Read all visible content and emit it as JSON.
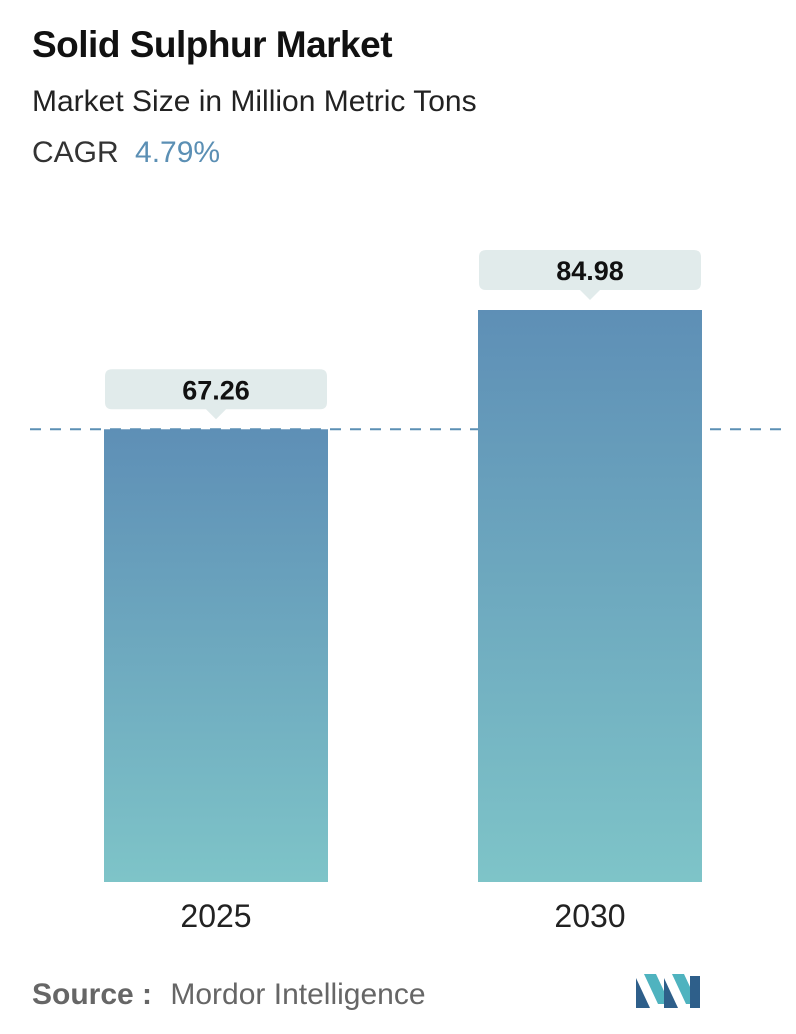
{
  "header": {
    "title": "Solid Sulphur Market",
    "subtitle": "Market Size in Million Metric Tons",
    "cagr_label": "CAGR",
    "cagr_value": "4.79%"
  },
  "footer": {
    "source_label": "Source :",
    "source_name": "Mordor Intelligence",
    "logo_icon": "mordor-intelligence-logo-icon"
  },
  "colors": {
    "bar_top": "#5e8fb6",
    "bar_bottom": "#7ec4c8",
    "label_box": "#e1ebeb",
    "reference_line": "#5b8fb4",
    "cagr_accent": "#5b8fb4",
    "logo_dark": "#2e5f8a",
    "logo_light": "#4fb3bf"
  },
  "chart_data": {
    "type": "bar",
    "categories": [
      "2025",
      "2030"
    ],
    "values": [
      67.26,
      84.98
    ],
    "value_labels": [
      "67.26",
      "84.98"
    ],
    "title": "Solid Sulphur Market",
    "subtitle": "Market Size in Million Metric Tons",
    "ylabel": "",
    "xlabel": "",
    "ylim": [
      0,
      84.98
    ],
    "grid": false,
    "legend": "none",
    "reference_line": {
      "value": 67.26,
      "style": "dashed"
    }
  }
}
